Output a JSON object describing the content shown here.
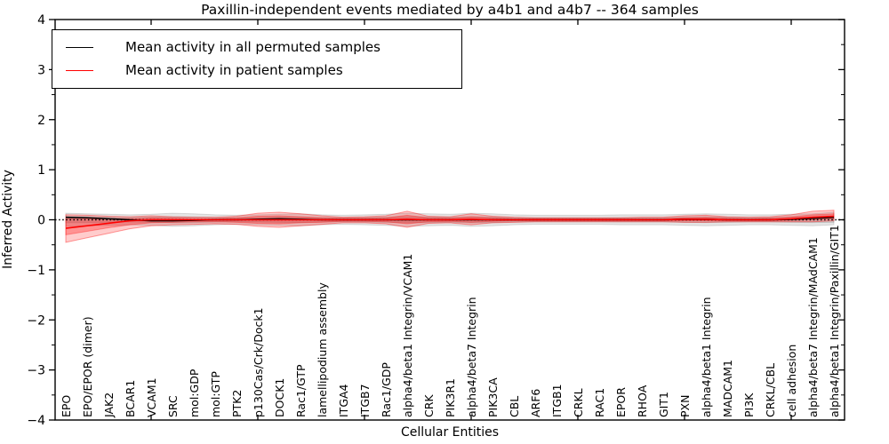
{
  "title": "Paxillin-independent events mediated by a4b1 and a4b7 -- 364 samples",
  "legend": {
    "items": [
      {
        "label": "Mean activity in all permuted samples",
        "color": "#000000"
      },
      {
        "label": "Mean activity in patient samples",
        "color": "#ff0000"
      }
    ]
  },
  "axes": {
    "xlabel": "Cellular Entities",
    "ylabel": "Inferred Activity",
    "ytick_values": [
      -4,
      -3,
      -2,
      -1,
      0,
      1,
      2,
      3,
      4
    ],
    "ytick_labels": [
      "−4",
      "−3",
      "−2",
      "−1",
      "0",
      "1",
      "2",
      "3",
      "4"
    ],
    "yminor_values": [
      -3.5,
      -2.5,
      -1.5,
      -0.5,
      0.5,
      1.5,
      2.5,
      3.5
    ],
    "xtick_indices": [
      4,
      9,
      14,
      19,
      24,
      29,
      34
    ]
  },
  "chart_data": {
    "type": "line",
    "title": "Paxillin-independent events mediated by a4b1 and a4b7 -- 364 samples",
    "xlabel": "Cellular Entities",
    "ylabel": "Inferred Activity",
    "ylim": [
      -4,
      4
    ],
    "grid": false,
    "legend_position": "upper left",
    "zero_reference_line": 0,
    "categories": [
      "EPO",
      "EPO/EPOR (dimer)",
      "JAK2",
      "BCAR1",
      "VCAM1",
      "SRC",
      "mol:GDP",
      "mol:GTP",
      "PTK2",
      "p130Cas/Crk/Dock1",
      "DOCK1",
      "Rac1/GTP",
      "lamellipodium assembly",
      "ITGA4",
      "ITGB7",
      "Rac1/GDP",
      "alpha4/beta1 Integrin/VCAM1",
      "CRK",
      "PIK3R1",
      "alpha4/beta7 Integrin",
      "PIK3CA",
      "CBL",
      "ARF6",
      "ITGB1",
      "CRKL",
      "RAC1",
      "EPOR",
      "RHOA",
      "GIT1",
      "PXN",
      "alpha4/beta1 Integrin",
      "MADCAM1",
      "PI3K",
      "CRKL/CBL",
      "cell adhesion",
      "alpha4/beta7 Integrin/MAdCAM1",
      "alpha4/beta1 Integrin/Paxillin/GIT1"
    ],
    "series": [
      {
        "name": "Mean activity in all permuted samples",
        "color": "#000000",
        "values": [
          0.05,
          0.04,
          0.02,
          0.0,
          -0.02,
          -0.02,
          -0.01,
          0.0,
          0.0,
          0.01,
          0.02,
          0.01,
          0.0,
          0.0,
          0.0,
          0.0,
          0.0,
          0.0,
          0.0,
          0.0,
          0.0,
          0.0,
          0.0,
          0.0,
          0.0,
          0.0,
          0.0,
          0.0,
          0.0,
          0.01,
          0.01,
          0.0,
          0.0,
          0.0,
          0.01,
          0.03,
          0.05
        ]
      },
      {
        "name": "Mean activity in patient samples",
        "color": "#ff0000",
        "values": [
          -0.17,
          -0.12,
          -0.07,
          -0.02,
          0.0,
          0.0,
          0.0,
          0.0,
          0.0,
          0.0,
          0.0,
          0.0,
          0.0,
          0.0,
          0.0,
          0.0,
          0.01,
          0.0,
          0.0,
          0.01,
          0.0,
          0.0,
          0.0,
          0.0,
          0.0,
          0.0,
          0.0,
          0.0,
          0.0,
          0.01,
          0.01,
          0.0,
          0.0,
          0.0,
          0.02,
          0.05,
          0.07
        ]
      }
    ],
    "bands": [
      {
        "name": "permuted-samples-outer-band",
        "color": "rgba(0,0,0,0.10)",
        "stroke": "rgba(0,0,0,0.12)",
        "upper": [
          0.13,
          0.12,
          0.11,
          0.1,
          0.11,
          0.13,
          0.12,
          0.1,
          0.09,
          0.1,
          0.11,
          0.12,
          0.1,
          0.09,
          0.1,
          0.11,
          0.13,
          0.12,
          0.11,
          0.13,
          0.12,
          0.1,
          0.09,
          0.09,
          0.09,
          0.09,
          0.1,
          0.1,
          0.1,
          0.11,
          0.12,
          0.11,
          0.1,
          0.1,
          0.11,
          0.12,
          0.15
        ],
        "lower": [
          -0.13,
          -0.12,
          -0.11,
          -0.1,
          -0.11,
          -0.13,
          -0.12,
          -0.1,
          -0.09,
          -0.1,
          -0.11,
          -0.12,
          -0.1,
          -0.09,
          -0.1,
          -0.11,
          -0.13,
          -0.12,
          -0.11,
          -0.13,
          -0.12,
          -0.1,
          -0.09,
          -0.09,
          -0.09,
          -0.09,
          -0.1,
          -0.1,
          -0.1,
          -0.11,
          -0.12,
          -0.11,
          -0.1,
          -0.1,
          -0.11,
          -0.12,
          -0.1
        ]
      },
      {
        "name": "permuted-samples-inner-band",
        "color": "rgba(0,0,0,0.10)",
        "stroke": "rgba(0,0,0,0.10)",
        "upper": [
          0.06,
          0.055,
          0.05,
          0.045,
          0.05,
          0.06,
          0.055,
          0.045,
          0.04,
          0.045,
          0.05,
          0.055,
          0.045,
          0.04,
          0.045,
          0.05,
          0.06,
          0.055,
          0.05,
          0.06,
          0.055,
          0.045,
          0.04,
          0.04,
          0.04,
          0.04,
          0.045,
          0.045,
          0.045,
          0.05,
          0.055,
          0.05,
          0.045,
          0.045,
          0.05,
          0.055,
          0.07
        ],
        "lower": [
          -0.06,
          -0.055,
          -0.05,
          -0.045,
          -0.05,
          -0.06,
          -0.055,
          -0.045,
          -0.04,
          -0.045,
          -0.05,
          -0.055,
          -0.045,
          -0.04,
          -0.045,
          -0.05,
          -0.06,
          -0.055,
          -0.05,
          -0.06,
          -0.055,
          -0.045,
          -0.04,
          -0.04,
          -0.04,
          -0.04,
          -0.045,
          -0.045,
          -0.045,
          -0.05,
          -0.055,
          -0.05,
          -0.045,
          -0.045,
          -0.05,
          -0.055,
          -0.05
        ]
      },
      {
        "name": "patient-samples-outer-band",
        "color": "rgba(255,0,0,0.20)",
        "stroke": "rgba(255,0,0,0.38)",
        "upper": [
          0.1,
          0.09,
          0.07,
          0.06,
          0.08,
          0.06,
          0.05,
          0.05,
          0.07,
          0.13,
          0.15,
          0.12,
          0.08,
          0.05,
          0.06,
          0.08,
          0.17,
          0.07,
          0.06,
          0.12,
          0.07,
          0.05,
          0.04,
          0.04,
          0.04,
          0.04,
          0.04,
          0.05,
          0.05,
          0.08,
          0.09,
          0.06,
          0.05,
          0.06,
          0.1,
          0.17,
          0.19
        ],
        "lower": [
          -0.45,
          -0.36,
          -0.27,
          -0.18,
          -0.12,
          -0.1,
          -0.09,
          -0.08,
          -0.09,
          -0.13,
          -0.15,
          -0.12,
          -0.09,
          -0.06,
          -0.06,
          -0.08,
          -0.15,
          -0.07,
          -0.06,
          -0.1,
          -0.06,
          -0.05,
          -0.04,
          -0.04,
          -0.04,
          -0.04,
          -0.04,
          -0.04,
          -0.04,
          -0.05,
          -0.05,
          -0.04,
          -0.04,
          -0.04,
          -0.04,
          -0.04,
          -0.02
        ]
      },
      {
        "name": "patient-samples-inner-band",
        "color": "rgba(255,0,0,0.28)",
        "stroke": "rgba(255,0,0,0.30)",
        "upper": [
          0.02,
          0.02,
          0.02,
          0.02,
          0.04,
          0.03,
          0.02,
          0.02,
          0.04,
          0.07,
          0.08,
          0.06,
          0.04,
          0.03,
          0.03,
          0.04,
          0.09,
          0.04,
          0.03,
          0.06,
          0.04,
          0.02,
          0.02,
          0.02,
          0.02,
          0.02,
          0.02,
          0.02,
          0.02,
          0.04,
          0.05,
          0.03,
          0.02,
          0.03,
          0.06,
          0.1,
          0.12
        ],
        "lower": [
          -0.3,
          -0.23,
          -0.16,
          -0.1,
          -0.06,
          -0.05,
          -0.04,
          -0.04,
          -0.05,
          -0.07,
          -0.08,
          -0.06,
          -0.05,
          -0.03,
          -0.03,
          -0.04,
          -0.08,
          -0.04,
          -0.03,
          -0.05,
          -0.03,
          -0.02,
          -0.02,
          -0.02,
          -0.02,
          -0.02,
          -0.02,
          -0.02,
          -0.02,
          -0.02,
          -0.02,
          -0.02,
          -0.02,
          -0.02,
          -0.01,
          0.0,
          0.02
        ]
      }
    ]
  }
}
